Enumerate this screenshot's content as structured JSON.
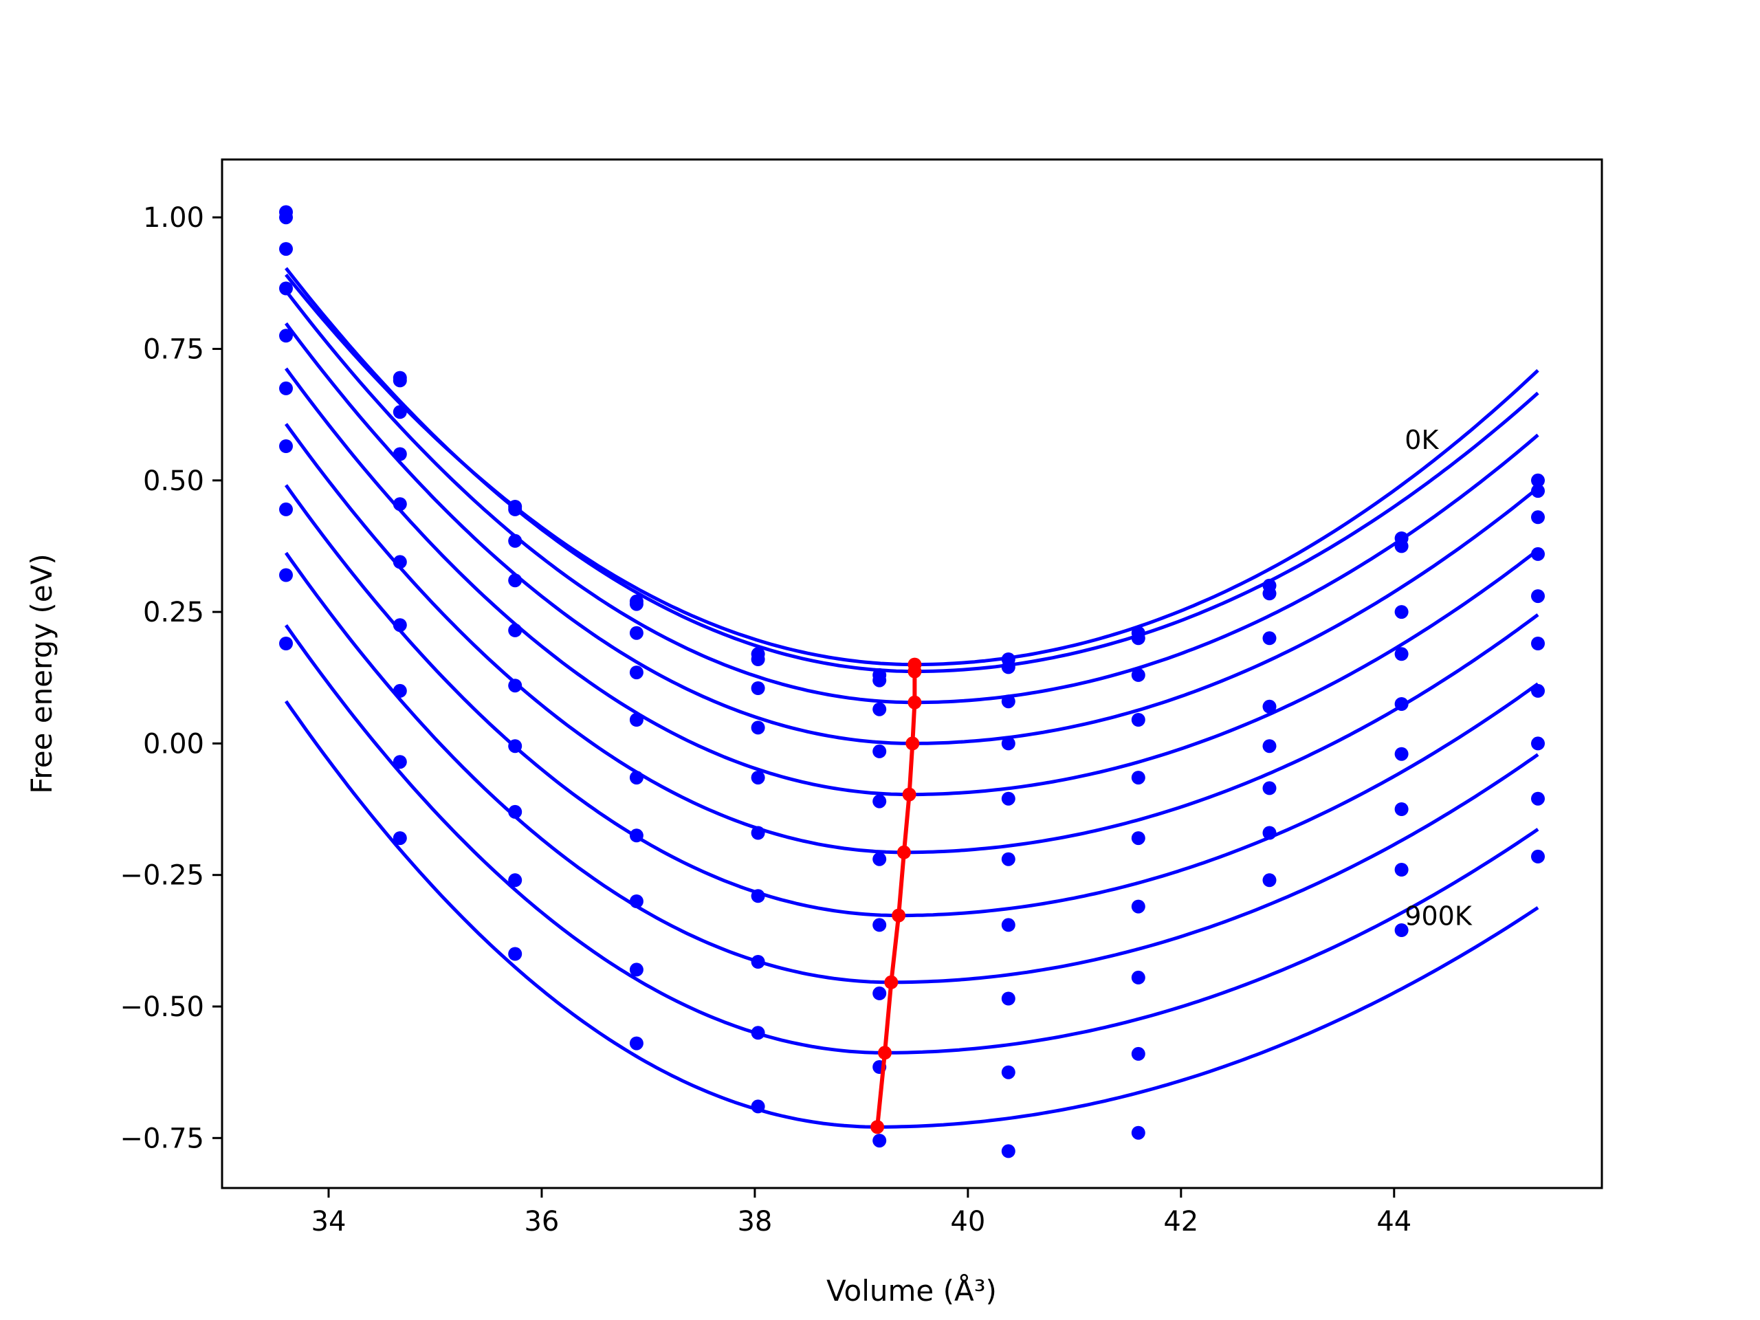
{
  "chart_data": {
    "type": "scatter",
    "title": "",
    "xlabel": "Volume (Å³)",
    "ylabel": "Free energy (eV)",
    "xlim": [
      33.0,
      45.95
    ],
    "ylim": [
      -0.845,
      1.11
    ],
    "xticks": [
      34,
      36,
      38,
      40,
      42,
      44
    ],
    "xtick_labels": [
      "34",
      "36",
      "38",
      "40",
      "42",
      "44"
    ],
    "yticks": [
      1.0,
      0.75,
      0.5,
      0.25,
      0.0,
      -0.25,
      -0.5,
      -0.75
    ],
    "ytick_labels": [
      "1.00",
      "0.75",
      "0.50",
      "0.25",
      "0.00",
      "−0.25",
      "−0.50",
      "−0.75"
    ],
    "grid": false,
    "colors": {
      "points": "#0000ff",
      "fits": "#0000ff",
      "minima": "#ff0000"
    },
    "annotations": [
      {
        "text": "0K",
        "x": 44.1,
        "y": 0.56
      },
      {
        "text": "900K",
        "x": 44.1,
        "y": -0.345
      }
    ],
    "volumes": [
      33.6,
      34.67,
      35.75,
      36.89,
      38.03,
      39.17,
      40.38,
      41.6,
      42.83,
      44.07,
      45.35
    ],
    "series": [
      {
        "y": [
          1.01,
          0.69,
          0.45,
          0.27,
          0.17,
          0.13,
          0.16,
          0.21,
          0.3,
          0.39,
          0.5
        ],
        "fit": {
          "v0": 39.5,
          "f0": 0.15,
          "a": 0.021286,
          "b": 0.016339,
          "vmax": 45.35
        }
      },
      {
        "y": [
          1.0,
          0.695,
          0.445,
          0.265,
          0.16,
          0.12,
          0.145,
          0.2,
          0.285,
          0.375,
          0.48
        ],
        "fit": {
          "v0": 39.5,
          "f0": 0.137,
          "a": 0.022016,
          "b": 0.015462,
          "vmax": 45.35
        }
      },
      {
        "y": [
          0.94,
          0.63,
          0.385,
          0.21,
          0.105,
          0.065,
          0.08,
          0.13,
          0.2,
          0.25,
          0.43
        ],
        "fit": {
          "v0": 39.5,
          "f0": 0.078,
          "a": 0.022474,
          "b": 0.014853,
          "vmax": 45.35
        }
      },
      {
        "y": [
          0.865,
          0.55,
          0.31,
          0.135,
          0.03,
          -0.015,
          0.0,
          0.045,
          0.07,
          0.17,
          0.36
        ],
        "fit": {
          "v0": 39.48,
          "f0": 0.0,
          "a": 0.023093,
          "b": 0.014097,
          "vmax": 45.35
        }
      },
      {
        "y": [
          0.775,
          0.455,
          0.215,
          0.045,
          -0.065,
          -0.11,
          -0.105,
          -0.065,
          -0.005,
          0.075,
          0.28
        ],
        "fit": {
          "v0": 39.45,
          "f0": -0.097,
          "a": 0.023662,
          "b": 0.013353,
          "vmax": 45.35
        }
      },
      {
        "y": [
          0.675,
          0.345,
          0.11,
          -0.065,
          -0.17,
          -0.22,
          -0.22,
          -0.18,
          -0.085,
          -0.02,
          0.19
        ],
        "fit": {
          "v0": 39.4,
          "f0": -0.207,
          "a": 0.024207,
          "b": 0.012761,
          "vmax": 45.35
        }
      },
      {
        "y": [
          0.565,
          0.225,
          -0.005,
          -0.175,
          -0.29,
          -0.345,
          -0.345,
          -0.31,
          -0.17,
          -0.125,
          0.1
        ],
        "fit": {
          "v0": 39.35,
          "f0": -0.327,
          "a": 0.024739,
          "b": 0.012233,
          "vmax": 45.35
        }
      },
      {
        "y": [
          0.445,
          0.1,
          -0.13,
          -0.3,
          -0.415,
          -0.475,
          -0.485,
          -0.445,
          -0.26,
          -0.24,
          0.0
        ],
        "fit": {
          "v0": 39.28,
          "f0": -0.454,
          "a": 0.025298,
          "b": 0.011749,
          "vmax": 45.35
        }
      },
      {
        "y": [
          0.32,
          -0.035,
          -0.26,
          -0.43,
          -0.55,
          -0.615,
          -0.625,
          -0.59,
          null,
          -0.355,
          -0.105
        ],
        "fit": {
          "v0": 39.22,
          "f0": -0.588,
          "a": 0.025734,
          "b": 0.011308,
          "vmax": 45.35
        }
      },
      {
        "y": [
          0.19,
          -0.18,
          -0.4,
          -0.57,
          -0.69,
          -0.755,
          -0.775,
          -0.74,
          null,
          null,
          -0.215
        ],
        "fit": {
          "v0": 39.15,
          "f0": -0.729,
          "a": 0.026272,
          "b": 0.010846,
          "vmax": 45.35
        }
      }
    ],
    "minima": {
      "x": [
        39.5,
        39.5,
        39.5,
        39.48,
        39.45,
        39.4,
        39.35,
        39.28,
        39.22,
        39.15
      ],
      "y": [
        0.15,
        0.137,
        0.078,
        0.0,
        -0.097,
        -0.207,
        -0.327,
        -0.454,
        -0.588,
        -0.729
      ]
    }
  }
}
